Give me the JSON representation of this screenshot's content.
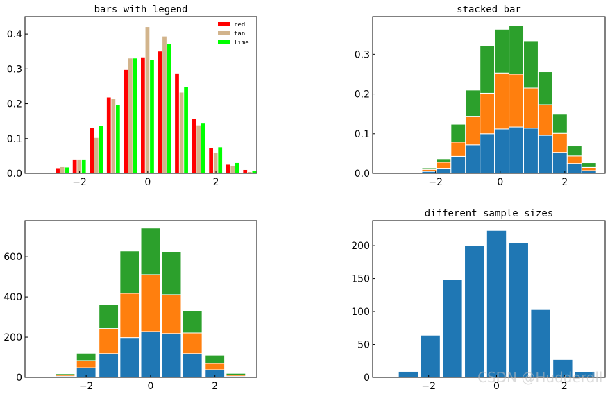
{
  "chart_data": [
    {
      "type": "bar",
      "variant": "grouped",
      "title": "bars with legend",
      "xlabel": "",
      "ylabel": "",
      "bin_centers": [
        -3.0,
        -2.5,
        -2.0,
        -1.5,
        -1.0,
        -0.5,
        0.0,
        0.5,
        1.0,
        1.5,
        2.0,
        2.5,
        3.0
      ],
      "bin_width": 0.5,
      "series": [
        {
          "name": "red",
          "color": "#ff0000",
          "values": [
            0.002,
            0.015,
            0.04,
            0.13,
            0.218,
            0.297,
            0.333,
            0.35,
            0.287,
            0.157,
            0.072,
            0.025,
            0.01
          ]
        },
        {
          "name": "tan",
          "color": "#d2b48c",
          "values": [
            0.002,
            0.018,
            0.04,
            0.102,
            0.213,
            0.33,
            0.42,
            0.393,
            0.232,
            0.138,
            0.058,
            0.022,
            0.004
          ]
        },
        {
          "name": "lime",
          "color": "#00ff00",
          "values": [
            0.002,
            0.017,
            0.04,
            0.137,
            0.196,
            0.33,
            0.325,
            0.372,
            0.248,
            0.143,
            0.075,
            0.03,
            0.006
          ]
        }
      ],
      "xlim": [
        -3.6,
        3.2
      ],
      "ylim": [
        0,
        0.45
      ],
      "xticks": [
        -2,
        0,
        2
      ],
      "yticks": [
        0.0,
        0.1,
        0.2,
        0.3,
        0.4
      ],
      "xtick_labels": [
        "−2",
        "0",
        "2"
      ],
      "ytick_labels": [
        "0.0",
        "0.1",
        "0.2",
        "0.3",
        "0.4"
      ],
      "legend": "top-right",
      "grid": false
    },
    {
      "type": "bar",
      "variant": "stacked",
      "title": "stacked bar",
      "xlabel": "",
      "ylabel": "",
      "bin_centers": [
        -2.65,
        -2.2,
        -1.75,
        -1.3,
        -0.85,
        -0.4,
        0.05,
        0.5,
        0.95,
        1.4,
        1.85,
        2.3,
        2.75
      ],
      "bin_width": 0.45,
      "series": [
        {
          "color": "#1f77b4",
          "values": [
            0.0,
            0.005,
            0.013,
            0.043,
            0.072,
            0.1,
            0.112,
            0.117,
            0.114,
            0.096,
            0.053,
            0.025,
            0.007
          ]
        },
        {
          "color": "#ff7f0e",
          "values": [
            0.0,
            0.005,
            0.015,
            0.036,
            0.072,
            0.102,
            0.141,
            0.133,
            0.101,
            0.077,
            0.048,
            0.019,
            0.008
          ]
        },
        {
          "color": "#2ca02c",
          "values": [
            0.0,
            0.004,
            0.009,
            0.045,
            0.066,
            0.12,
            0.11,
            0.123,
            0.119,
            0.083,
            0.048,
            0.025,
            0.012
          ]
        }
      ],
      "xlim": [
        -3.95,
        3.25
      ],
      "ylim": [
        0,
        0.395
      ],
      "xticks": [
        -2,
        0,
        2
      ],
      "yticks": [
        0.0,
        0.1,
        0.2,
        0.3
      ],
      "xtick_labels": [
        "−2",
        "0",
        "2"
      ],
      "ytick_labels": [
        "0.0",
        "0.1",
        "0.2",
        "0.3"
      ],
      "grid": false
    },
    {
      "type": "bar",
      "variant": "stacked",
      "title": "",
      "xlabel": "",
      "ylabel": "",
      "bin_centers": [
        -2.65,
        -2.0,
        -1.3,
        -0.65,
        0.0,
        0.65,
        1.3,
        2.0,
        2.65
      ],
      "bin_width": 0.6,
      "series": [
        {
          "color": "#1f77b4",
          "values": [
            6,
            48,
            118,
            198,
            228,
            218,
            118,
            38,
            6
          ]
        },
        {
          "color": "#ff7f0e",
          "values": [
            6,
            35,
            125,
            220,
            283,
            193,
            103,
            31,
            6
          ]
        },
        {
          "color": "#2ca02c",
          "values": [
            6,
            37,
            119,
            211,
            232,
            213,
            111,
            41,
            8
          ]
        }
      ],
      "xlim": [
        -3.9,
        3.3
      ],
      "ylim": [
        0,
        780
      ],
      "xticks": [
        -2,
        0,
        2
      ],
      "yticks": [
        0,
        200,
        400,
        600
      ],
      "xtick_labels": [
        "−2",
        "0",
        "2"
      ],
      "ytick_labels": [
        "0",
        "200",
        "400",
        "600"
      ],
      "grid": false
    },
    {
      "type": "bar",
      "title": "different sample sizes",
      "xlabel": "",
      "ylabel": "",
      "bin_centers": [
        -3.2,
        -2.6,
        -1.95,
        -1.3,
        -0.65,
        0.0,
        0.65,
        1.3,
        1.95,
        2.6
      ],
      "bin_width": 0.58,
      "series": [
        {
          "color": "#1f77b4",
          "values": [
            1,
            9,
            64,
            148,
            200,
            223,
            204,
            103,
            27,
            8
          ]
        }
      ],
      "xlim": [
        -3.65,
        3.2
      ],
      "ylim": [
        0,
        238
      ],
      "xticks": [
        -2,
        0,
        2
      ],
      "yticks": [
        0,
        50,
        100,
        150,
        200
      ],
      "xtick_labels": [
        "−2",
        "0",
        "2"
      ],
      "ytick_labels": [
        "0",
        "50",
        "100",
        "150",
        "200"
      ],
      "grid": false
    }
  ],
  "watermark": "CSDN @Hudderdll"
}
